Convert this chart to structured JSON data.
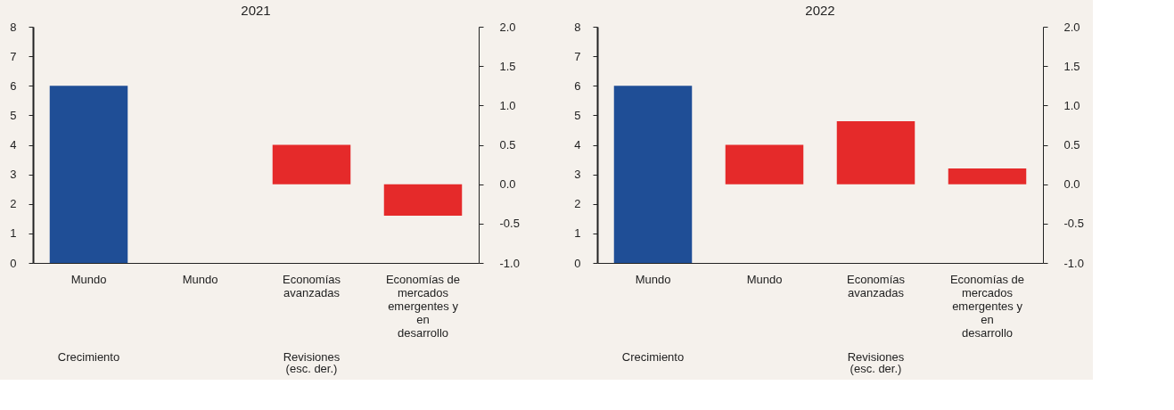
{
  "chart_data": [
    {
      "type": "bar",
      "title": "2021",
      "categories": [
        "Mundo",
        "Mundo",
        "Economías avanzadas",
        "Economías de mercados emergentes y en desarrollo"
      ],
      "series": [
        {
          "color": "#1f4e96",
          "values": [
            6.0,
            null,
            null,
            null
          ]
        },
        {
          "color": "#e52a2a",
          "axis": "y2",
          "values": [
            null,
            0.0,
            0.5,
            -0.4
          ]
        }
      ],
      "ylim": [
        0,
        8
      ],
      "yticks": [
        0,
        1,
        2,
        3,
        4,
        5,
        6,
        7,
        8
      ],
      "y2lim": [
        -1,
        2
      ],
      "y2ticks": [
        {
          "value": -1,
          "label": "-1.0"
        },
        {
          "value": -0.5,
          "label": "-0.5"
        },
        {
          "value": 0,
          "label": "0.0"
        },
        {
          "value": 0.5,
          "label": "0.5"
        },
        {
          "value": 1,
          "label": "1.0"
        },
        {
          "value": 1.5,
          "label": "1.5"
        },
        {
          "value": 2,
          "label": "2.0"
        }
      ],
      "annotations": [
        "Crecimiento",
        "Revisiones (esc. der.)"
      ]
    },
    {
      "type": "bar",
      "title": "2022",
      "categories": [
        "Mundo",
        "Mundo",
        "Economías avanzadas",
        "Economías de mercados emergentes y en desarrollo"
      ],
      "series": [
        {
          "color": "#1f4e96",
          "values": [
            6.0,
            null,
            null,
            null
          ]
        },
        {
          "color": "#e52a2a",
          "axis": "y2",
          "values": [
            null,
            0.5,
            0.8,
            0.2
          ]
        }
      ],
      "ylim": [
        0,
        8
      ],
      "yticks": [
        0,
        1,
        2,
        3,
        4,
        5,
        6,
        7,
        8
      ],
      "y2lim": [
        -1,
        2
      ],
      "y2ticks": [
        {
          "value": -1,
          "label": "-1.0"
        },
        {
          "value": -0.5,
          "label": "-0.5"
        },
        {
          "value": 0,
          "label": "0.0"
        },
        {
          "value": 0.5,
          "label": "0.5"
        },
        {
          "value": 1,
          "label": "1.0"
        },
        {
          "value": 1.5,
          "label": "1.5"
        },
        {
          "value": 2,
          "label": "2.0"
        }
      ],
      "annotations": [
        "Crecimiento",
        "Revisiones (esc. der.)"
      ]
    }
  ]
}
